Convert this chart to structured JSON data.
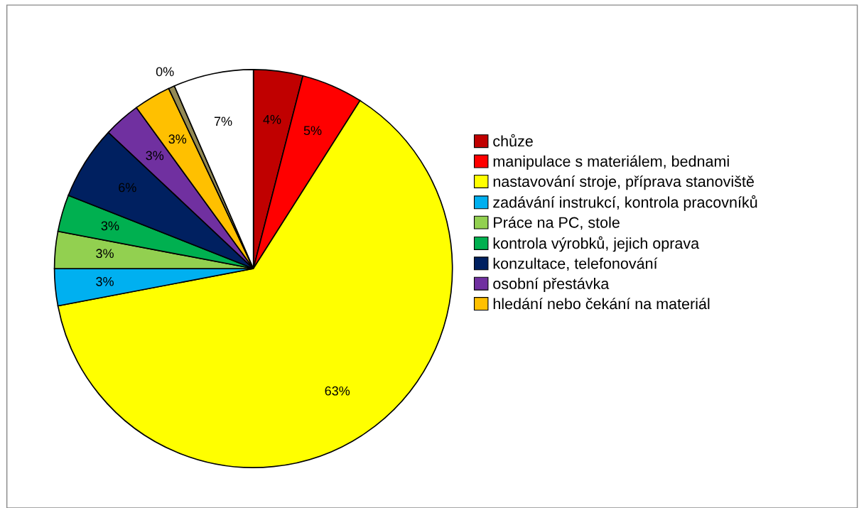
{
  "chart_data": {
    "type": "pie",
    "categories": [
      "chůze",
      "manipulace s materiálem, bednami",
      "nastavování stroje, příprava stanoviště",
      "zadávání instrukcí, kontrola pracovníků",
      "Práce na PC, stole",
      "kontrola výrobků, jejich oprava",
      "konzultace, telefonování",
      "osobní přestávka",
      "hledání nebo čekání na materiál",
      null,
      null
    ],
    "values": [
      4,
      5,
      63,
      3,
      3,
      3,
      6,
      3,
      3,
      0.5,
      6.5
    ],
    "value_labels": [
      "4%",
      "5%",
      "63%",
      "3%",
      "3%",
      "3%",
      "6%",
      "3%",
      "3%",
      "0%",
      "7%"
    ],
    "colors": [
      "#c00000",
      "#ff0000",
      "#ffff00",
      "#00b0f0",
      "#92d050",
      "#00b050",
      "#002060",
      "#7030a0",
      "#ffc000",
      "#948a54",
      "#ffffff"
    ],
    "legend": "right"
  }
}
